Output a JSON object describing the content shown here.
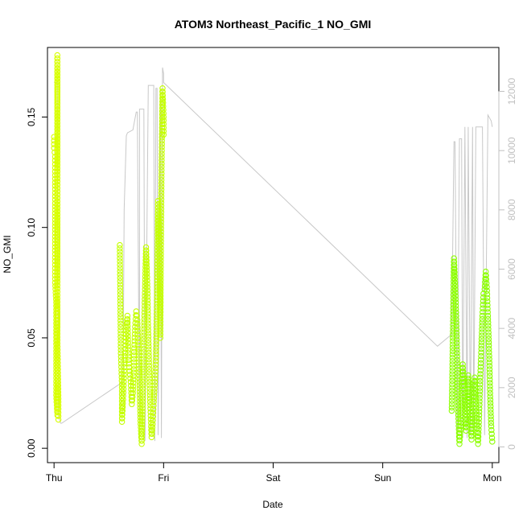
{
  "chart_data": {
    "type": "scatter",
    "title": "ATOM3 Northeast_Pacific_1 NO_GMI",
    "xlabel": "Date",
    "ylabel": "NO_GMI",
    "x_ticks": [
      "Thu",
      "Fri",
      "Sat",
      "Sun",
      "Mon"
    ],
    "xlim": [
      -0.06,
      4.06
    ],
    "ylim_left": [
      -0.0065,
      0.1815
    ],
    "ylim_right": [
      -530,
      13480
    ],
    "y_ticks_left": [
      "0.00",
      "0.05",
      "0.10",
      "0.15"
    ],
    "y_ticks_right": [
      "0",
      "2000",
      "4000",
      "6000",
      "8000",
      "10000",
      "12000"
    ],
    "legend": "none",
    "grid": false,
    "colors": {
      "altitude_line": "#c8c8c8",
      "points_early": "#d8ff00",
      "points_mid": "#c4ff00",
      "points_late": "#8cff00",
      "axis": "#000000",
      "right_axis": "#c0c0c0"
    },
    "series": [
      {
        "axis": "right",
        "kind": "line",
        "x": [
          0.0,
          0.03,
          0.04,
          0.06,
          0.07,
          0.55,
          0.63,
          0.64,
          0.66,
          0.67,
          0.72,
          0.75,
          0.76,
          0.78,
          0.78,
          0.8,
          0.82,
          0.83,
          0.86,
          0.88,
          0.91,
          0.92,
          0.93,
          0.94,
          0.95,
          0.97,
          0.98,
          0.99,
          1.0,
          1.0,
          3.5,
          3.63,
          3.65,
          3.66,
          3.68,
          3.7,
          3.72,
          3.73,
          3.75,
          3.77,
          3.78,
          3.8,
          3.82,
          3.83,
          3.85,
          3.88,
          3.91,
          3.93,
          3.96,
          3.99,
          4.0
        ],
        "y": [
          12300,
          12300,
          1100,
          800,
          800,
          2000,
          2200,
          8000,
          10500,
          10600,
          10700,
          11300,
          11300,
          200,
          11400,
          11400,
          11400,
          200,
          12200,
          12200,
          12200,
          200,
          12100,
          12100,
          400,
          12100,
          300,
          12800,
          12600,
          12300,
          3400,
          3800,
          10300,
          10300,
          400,
          10400,
          10400,
          300,
          10800,
          300,
          10800,
          400,
          10800,
          300,
          10800,
          10800,
          10800,
          400,
          11200,
          11000,
          10800
        ]
      },
      {
        "axis": "left",
        "kind": "points",
        "segment": "Thursday early",
        "x": [
          0.0,
          0.0,
          0.01,
          0.01,
          0.01,
          0.01,
          0.01,
          0.01,
          0.02,
          0.02,
          0.02,
          0.02,
          0.02,
          0.03,
          0.03,
          0.03,
          0.03,
          0.03,
          0.03,
          0.03,
          0.03,
          0.04,
          0.04
        ],
        "y": [
          0.141,
          0.136,
          0.132,
          0.122,
          0.111,
          0.099,
          0.088,
          0.075,
          0.066,
          0.055,
          0.044,
          0.035,
          0.024,
          0.015,
          0.178,
          0.152,
          0.127,
          0.098,
          0.074,
          0.063,
          0.052,
          0.021,
          0.013
        ]
      },
      {
        "axis": "left",
        "kind": "points",
        "segment": "Thursday afternoon to Friday",
        "x": [
          0.6,
          0.61,
          0.62,
          0.62,
          0.63,
          0.64,
          0.65,
          0.66,
          0.67,
          0.68,
          0.7,
          0.71,
          0.72,
          0.73,
          0.74,
          0.75,
          0.76,
          0.77,
          0.78,
          0.79,
          0.8,
          0.81,
          0.82,
          0.83,
          0.84,
          0.85,
          0.86,
          0.87,
          0.88,
          0.89,
          0.9,
          0.91,
          0.92,
          0.93,
          0.94,
          0.95,
          0.96,
          0.97,
          0.98,
          0.99,
          1.0,
          1.0
        ],
        "y": [
          0.092,
          0.043,
          0.029,
          0.012,
          0.022,
          0.035,
          0.045,
          0.055,
          0.06,
          0.04,
          0.03,
          0.02,
          0.025,
          0.042,
          0.055,
          0.062,
          0.058,
          0.045,
          0.03,
          0.011,
          0.002,
          0.024,
          0.048,
          0.072,
          0.091,
          0.076,
          0.052,
          0.033,
          0.018,
          0.005,
          0.011,
          0.021,
          0.03,
          0.041,
          0.07,
          0.112,
          0.09,
          0.05,
          0.12,
          0.163,
          0.15,
          0.142
        ]
      },
      {
        "axis": "left",
        "kind": "points",
        "segment": "Sunday night to Monday",
        "x": [
          3.63,
          3.64,
          3.65,
          3.66,
          3.67,
          3.68,
          3.69,
          3.7,
          3.71,
          3.72,
          3.73,
          3.74,
          3.75,
          3.76,
          3.77,
          3.78,
          3.79,
          3.8,
          3.81,
          3.82,
          3.83,
          3.84,
          3.85,
          3.86,
          3.87,
          3.88,
          3.89,
          3.9,
          3.91,
          3.92,
          3.93,
          3.94,
          3.95,
          3.96,
          3.97,
          3.98,
          3.99,
          4.0
        ],
        "y": [
          0.017,
          0.05,
          0.086,
          0.075,
          0.06,
          0.04,
          0.015,
          0.002,
          0.01,
          0.025,
          0.038,
          0.03,
          0.02,
          0.008,
          0.018,
          0.033,
          0.027,
          0.012,
          0.004,
          0.015,
          0.025,
          0.032,
          0.02,
          0.009,
          0.002,
          0.015,
          0.032,
          0.045,
          0.06,
          0.07,
          0.072,
          0.08,
          0.073,
          0.06,
          0.045,
          0.025,
          0.01,
          0.003
        ]
      }
    ]
  }
}
